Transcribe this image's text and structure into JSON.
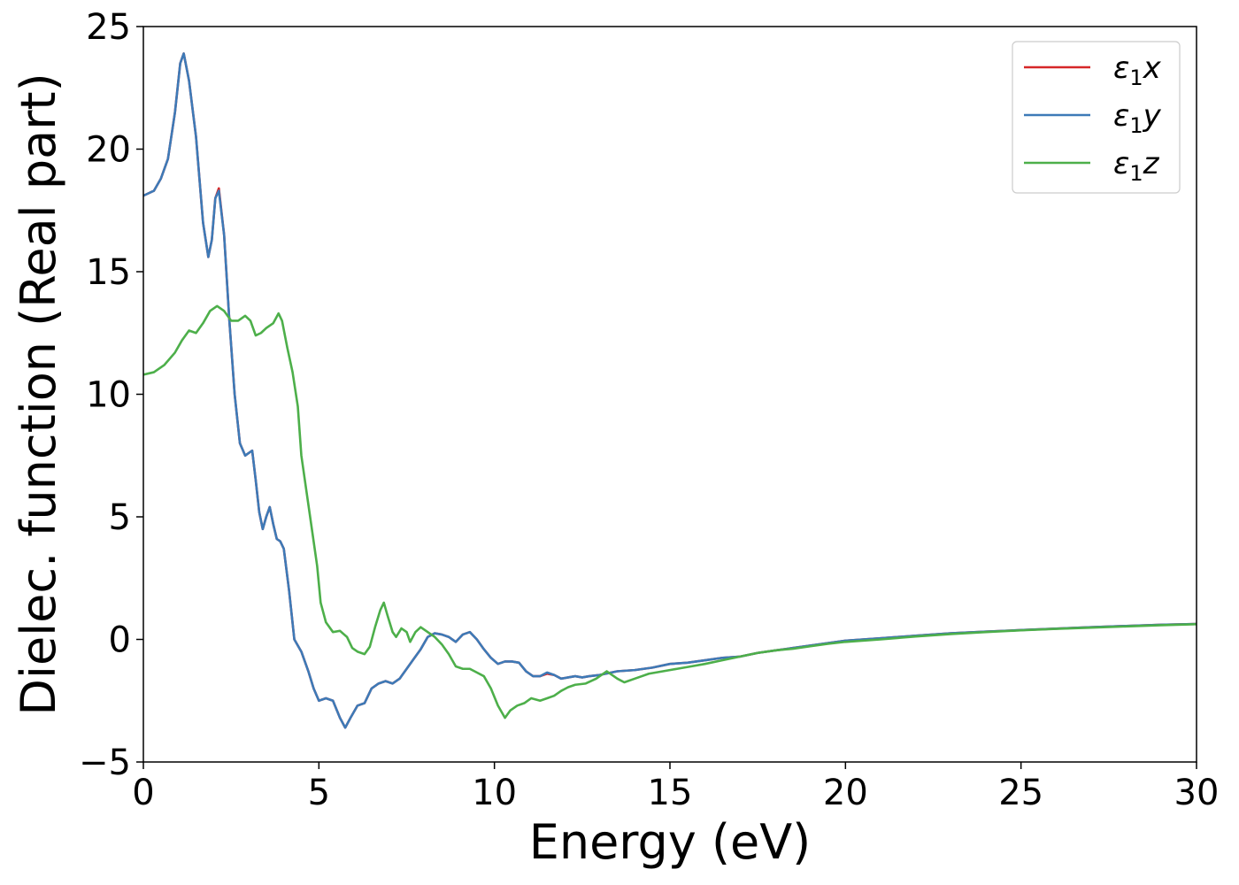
{
  "chart_data": {
    "type": "line",
    "xlabel": "Energy (eV)",
    "ylabel": "Dielec. function (Real part)",
    "xlim": [
      0,
      30
    ],
    "ylim": [
      -5,
      25
    ],
    "xticks": [
      0,
      5,
      10,
      15,
      20,
      25,
      30
    ],
    "yticks": [
      -5,
      0,
      5,
      10,
      15,
      20,
      25
    ],
    "xtick_labels": [
      "0",
      "5",
      "10",
      "15",
      "20",
      "25",
      "30"
    ],
    "ytick_labels": [
      "−5",
      "0",
      "5",
      "10",
      "15",
      "20",
      "25"
    ],
    "grid": false,
    "legend_position": "top-right",
    "series": [
      {
        "name": "ε1x",
        "name_base": "ε",
        "name_sub": "1",
        "name_var": "x",
        "color": "#d62728",
        "points": [
          [
            0,
            18.1
          ],
          [
            0.3,
            18.3
          ],
          [
            0.5,
            18.8
          ],
          [
            0.7,
            19.6
          ],
          [
            0.9,
            21.5
          ],
          [
            1.05,
            23.5
          ],
          [
            1.15,
            23.9
          ],
          [
            1.3,
            22.8
          ],
          [
            1.5,
            20.5
          ],
          [
            1.7,
            17.0
          ],
          [
            1.85,
            15.6
          ],
          [
            1.95,
            16.3
          ],
          [
            2.05,
            18.0
          ],
          [
            2.15,
            18.4
          ],
          [
            2.3,
            16.5
          ],
          [
            2.45,
            13.0
          ],
          [
            2.6,
            10.0
          ],
          [
            2.75,
            8.0
          ],
          [
            2.9,
            7.5
          ],
          [
            3.0,
            7.6
          ],
          [
            3.1,
            7.7
          ],
          [
            3.2,
            6.5
          ],
          [
            3.3,
            5.2
          ],
          [
            3.4,
            4.5
          ],
          [
            3.5,
            5.0
          ],
          [
            3.6,
            5.4
          ],
          [
            3.7,
            4.7
          ],
          [
            3.8,
            4.1
          ],
          [
            3.9,
            4.0
          ],
          [
            4.0,
            3.7
          ],
          [
            4.15,
            2.0
          ],
          [
            4.3,
            0.0
          ],
          [
            4.5,
            -0.5
          ],
          [
            4.7,
            -1.3
          ],
          [
            4.85,
            -2.0
          ],
          [
            5.0,
            -2.5
          ],
          [
            5.2,
            -2.4
          ],
          [
            5.4,
            -2.5
          ],
          [
            5.6,
            -3.2
          ],
          [
            5.75,
            -3.6
          ],
          [
            5.9,
            -3.2
          ],
          [
            6.1,
            -2.7
          ],
          [
            6.3,
            -2.6
          ],
          [
            6.5,
            -2.0
          ],
          [
            6.7,
            -1.8
          ],
          [
            6.9,
            -1.7
          ],
          [
            7.1,
            -1.8
          ],
          [
            7.3,
            -1.6
          ],
          [
            7.5,
            -1.2
          ],
          [
            7.7,
            -0.8
          ],
          [
            7.9,
            -0.4
          ],
          [
            8.1,
            0.1
          ],
          [
            8.3,
            0.25
          ],
          [
            8.5,
            0.2
          ],
          [
            8.7,
            0.1
          ],
          [
            8.9,
            -0.1
          ],
          [
            9.1,
            0.2
          ],
          [
            9.3,
            0.3
          ],
          [
            9.5,
            0.0
          ],
          [
            9.7,
            -0.4
          ],
          [
            9.9,
            -0.75
          ],
          [
            10.1,
            -1.0
          ],
          [
            10.3,
            -0.9
          ],
          [
            10.5,
            -0.9
          ],
          [
            10.7,
            -0.95
          ],
          [
            10.9,
            -1.3
          ],
          [
            11.1,
            -1.5
          ],
          [
            11.3,
            -1.5
          ],
          [
            11.5,
            -1.4
          ],
          [
            11.7,
            -1.45
          ],
          [
            11.9,
            -1.6
          ],
          [
            12.1,
            -1.55
          ],
          [
            12.3,
            -1.5
          ],
          [
            12.5,
            -1.55
          ],
          [
            12.7,
            -1.5
          ],
          [
            13.0,
            -1.45
          ],
          [
            13.5,
            -1.3
          ],
          [
            14.0,
            -1.25
          ],
          [
            14.5,
            -1.15
          ],
          [
            15.0,
            -1.0
          ],
          [
            15.5,
            -0.95
          ],
          [
            16.0,
            -0.85
          ],
          [
            16.5,
            -0.75
          ],
          [
            17.0,
            -0.7
          ],
          [
            17.5,
            -0.55
          ],
          [
            18.0,
            -0.45
          ],
          [
            18.5,
            -0.35
          ],
          [
            19.0,
            -0.25
          ],
          [
            19.5,
            -0.15
          ],
          [
            20.0,
            -0.05
          ],
          [
            21.0,
            0.05
          ],
          [
            22.0,
            0.15
          ],
          [
            23.0,
            0.25
          ],
          [
            24.0,
            0.32
          ],
          [
            25.0,
            0.38
          ],
          [
            26.0,
            0.44
          ],
          [
            27.0,
            0.5
          ],
          [
            28.0,
            0.55
          ],
          [
            29.0,
            0.6
          ],
          [
            30.0,
            0.63
          ]
        ]
      },
      {
        "name": "ε1y",
        "name_base": "ε",
        "name_sub": "1",
        "name_var": "y",
        "color": "#3d7ab7",
        "points": [
          [
            0,
            18.1
          ],
          [
            0.3,
            18.3
          ],
          [
            0.5,
            18.8
          ],
          [
            0.7,
            19.6
          ],
          [
            0.9,
            21.5
          ],
          [
            1.05,
            23.5
          ],
          [
            1.15,
            23.9
          ],
          [
            1.3,
            22.8
          ],
          [
            1.5,
            20.5
          ],
          [
            1.7,
            17.0
          ],
          [
            1.85,
            15.6
          ],
          [
            1.95,
            16.3
          ],
          [
            2.05,
            18.0
          ],
          [
            2.15,
            18.3
          ],
          [
            2.3,
            16.5
          ],
          [
            2.45,
            13.0
          ],
          [
            2.6,
            10.0
          ],
          [
            2.75,
            8.0
          ],
          [
            2.9,
            7.5
          ],
          [
            3.0,
            7.6
          ],
          [
            3.1,
            7.7
          ],
          [
            3.2,
            6.5
          ],
          [
            3.3,
            5.2
          ],
          [
            3.4,
            4.5
          ],
          [
            3.5,
            5.0
          ],
          [
            3.6,
            5.4
          ],
          [
            3.7,
            4.7
          ],
          [
            3.8,
            4.1
          ],
          [
            3.9,
            4.0
          ],
          [
            4.0,
            3.7
          ],
          [
            4.15,
            2.0
          ],
          [
            4.3,
            0.0
          ],
          [
            4.5,
            -0.5
          ],
          [
            4.7,
            -1.3
          ],
          [
            4.85,
            -2.0
          ],
          [
            5.0,
            -2.5
          ],
          [
            5.2,
            -2.4
          ],
          [
            5.4,
            -2.5
          ],
          [
            5.6,
            -3.2
          ],
          [
            5.75,
            -3.6
          ],
          [
            5.9,
            -3.2
          ],
          [
            6.1,
            -2.7
          ],
          [
            6.3,
            -2.6
          ],
          [
            6.5,
            -2.0
          ],
          [
            6.7,
            -1.8
          ],
          [
            6.9,
            -1.7
          ],
          [
            7.1,
            -1.8
          ],
          [
            7.3,
            -1.6
          ],
          [
            7.5,
            -1.2
          ],
          [
            7.7,
            -0.8
          ],
          [
            7.9,
            -0.4
          ],
          [
            8.1,
            0.1
          ],
          [
            8.3,
            0.25
          ],
          [
            8.5,
            0.2
          ],
          [
            8.7,
            0.1
          ],
          [
            8.9,
            -0.1
          ],
          [
            9.1,
            0.2
          ],
          [
            9.3,
            0.3
          ],
          [
            9.5,
            0.0
          ],
          [
            9.7,
            -0.4
          ],
          [
            9.9,
            -0.75
          ],
          [
            10.1,
            -1.0
          ],
          [
            10.3,
            -0.9
          ],
          [
            10.5,
            -0.9
          ],
          [
            10.7,
            -0.95
          ],
          [
            10.9,
            -1.3
          ],
          [
            11.1,
            -1.5
          ],
          [
            11.3,
            -1.5
          ],
          [
            11.5,
            -1.35
          ],
          [
            11.7,
            -1.45
          ],
          [
            11.9,
            -1.6
          ],
          [
            12.1,
            -1.55
          ],
          [
            12.3,
            -1.5
          ],
          [
            12.5,
            -1.55
          ],
          [
            12.7,
            -1.5
          ],
          [
            13.0,
            -1.45
          ],
          [
            13.5,
            -1.3
          ],
          [
            14.0,
            -1.25
          ],
          [
            14.5,
            -1.15
          ],
          [
            15.0,
            -1.0
          ],
          [
            15.5,
            -0.95
          ],
          [
            16.0,
            -0.85
          ],
          [
            16.5,
            -0.75
          ],
          [
            17.0,
            -0.7
          ],
          [
            17.5,
            -0.55
          ],
          [
            18.0,
            -0.45
          ],
          [
            18.5,
            -0.35
          ],
          [
            19.0,
            -0.25
          ],
          [
            19.5,
            -0.15
          ],
          [
            20.0,
            -0.05
          ],
          [
            21.0,
            0.05
          ],
          [
            22.0,
            0.15
          ],
          [
            23.0,
            0.25
          ],
          [
            24.0,
            0.32
          ],
          [
            25.0,
            0.38
          ],
          [
            26.0,
            0.44
          ],
          [
            27.0,
            0.5
          ],
          [
            28.0,
            0.55
          ],
          [
            29.0,
            0.6
          ],
          [
            30.0,
            0.63
          ]
        ]
      },
      {
        "name": "ε1z",
        "name_base": "ε",
        "name_sub": "1",
        "name_var": "z",
        "color": "#4daf4a",
        "points": [
          [
            0,
            10.8
          ],
          [
            0.3,
            10.9
          ],
          [
            0.6,
            11.2
          ],
          [
            0.9,
            11.7
          ],
          [
            1.1,
            12.2
          ],
          [
            1.3,
            12.6
          ],
          [
            1.5,
            12.5
          ],
          [
            1.7,
            12.9
          ],
          [
            1.9,
            13.4
          ],
          [
            2.1,
            13.6
          ],
          [
            2.3,
            13.4
          ],
          [
            2.5,
            13.0
          ],
          [
            2.7,
            13.0
          ],
          [
            2.9,
            13.2
          ],
          [
            3.05,
            13.0
          ],
          [
            3.2,
            12.4
          ],
          [
            3.35,
            12.5
          ],
          [
            3.5,
            12.7
          ],
          [
            3.7,
            12.9
          ],
          [
            3.85,
            13.3
          ],
          [
            3.95,
            13.0
          ],
          [
            4.1,
            11.9
          ],
          [
            4.25,
            10.9
          ],
          [
            4.4,
            9.5
          ],
          [
            4.5,
            7.5
          ],
          [
            4.65,
            6.0
          ],
          [
            4.8,
            4.5
          ],
          [
            4.95,
            3.0
          ],
          [
            5.05,
            1.5
          ],
          [
            5.2,
            0.7
          ],
          [
            5.4,
            0.3
          ],
          [
            5.6,
            0.35
          ],
          [
            5.8,
            0.1
          ],
          [
            5.95,
            -0.35
          ],
          [
            6.1,
            -0.5
          ],
          [
            6.3,
            -0.6
          ],
          [
            6.45,
            -0.3
          ],
          [
            6.6,
            0.5
          ],
          [
            6.75,
            1.2
          ],
          [
            6.85,
            1.5
          ],
          [
            6.95,
            1.0
          ],
          [
            7.1,
            0.3
          ],
          [
            7.2,
            0.1
          ],
          [
            7.35,
            0.45
          ],
          [
            7.5,
            0.3
          ],
          [
            7.6,
            -0.1
          ],
          [
            7.75,
            0.3
          ],
          [
            7.9,
            0.5
          ],
          [
            8.1,
            0.3
          ],
          [
            8.3,
            0.1
          ],
          [
            8.5,
            -0.2
          ],
          [
            8.7,
            -0.6
          ],
          [
            8.9,
            -1.1
          ],
          [
            9.1,
            -1.2
          ],
          [
            9.3,
            -1.2
          ],
          [
            9.5,
            -1.35
          ],
          [
            9.7,
            -1.5
          ],
          [
            9.9,
            -2.0
          ],
          [
            10.1,
            -2.7
          ],
          [
            10.3,
            -3.2
          ],
          [
            10.45,
            -2.9
          ],
          [
            10.65,
            -2.7
          ],
          [
            10.85,
            -2.6
          ],
          [
            11.05,
            -2.4
          ],
          [
            11.3,
            -2.5
          ],
          [
            11.5,
            -2.4
          ],
          [
            11.7,
            -2.3
          ],
          [
            11.9,
            -2.1
          ],
          [
            12.1,
            -1.95
          ],
          [
            12.3,
            -1.85
          ],
          [
            12.6,
            -1.8
          ],
          [
            12.9,
            -1.6
          ],
          [
            13.2,
            -1.3
          ],
          [
            13.5,
            -1.6
          ],
          [
            13.7,
            -1.75
          ],
          [
            14.0,
            -1.6
          ],
          [
            14.4,
            -1.4
          ],
          [
            14.8,
            -1.3
          ],
          [
            15.2,
            -1.2
          ],
          [
            15.6,
            -1.1
          ],
          [
            16.0,
            -1.0
          ],
          [
            16.5,
            -0.85
          ],
          [
            17.0,
            -0.7
          ],
          [
            17.5,
            -0.55
          ],
          [
            18.0,
            -0.45
          ],
          [
            18.5,
            -0.38
          ],
          [
            19.0,
            -0.28
          ],
          [
            19.5,
            -0.18
          ],
          [
            20.0,
            -0.1
          ],
          [
            21.0,
            0.0
          ],
          [
            22.0,
            0.12
          ],
          [
            23.0,
            0.22
          ],
          [
            24.0,
            0.3
          ],
          [
            25.0,
            0.37
          ],
          [
            26.0,
            0.43
          ],
          [
            27.0,
            0.48
          ],
          [
            28.0,
            0.53
          ],
          [
            29.0,
            0.58
          ],
          [
            30.0,
            0.62
          ]
        ]
      }
    ]
  }
}
